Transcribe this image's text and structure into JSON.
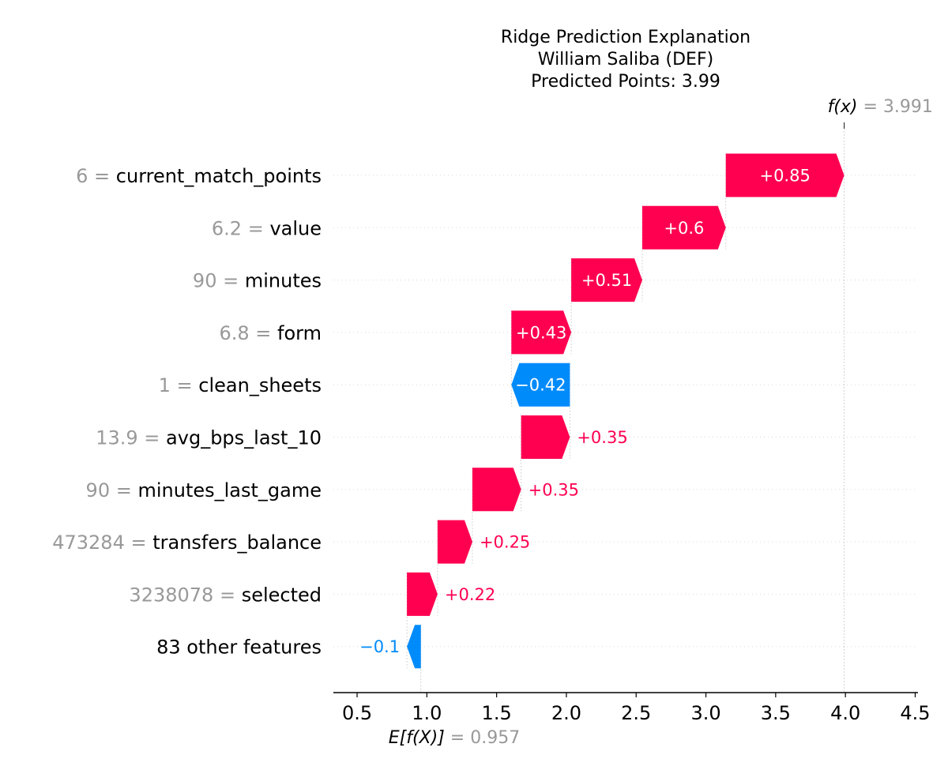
{
  "chart_data": {
    "type": "waterfall",
    "title_lines": [
      "Ridge Prediction Explanation",
      "William Saliba (DEF)",
      "Predicted Points: 3.99"
    ],
    "base_value": 0.957,
    "base_label": "E[f(X)]",
    "base_display": "0.957",
    "output_value": 3.991,
    "output_label": "f(x)",
    "output_display": "3.991",
    "xlim": [
      0.33,
      4.52
    ],
    "x_ticks": [
      0.5,
      1.0,
      1.5,
      2.0,
      2.5,
      3.0,
      3.5,
      4.0,
      4.5
    ],
    "x_tick_labels": [
      "0.5",
      "1.0",
      "1.5",
      "2.0",
      "2.5",
      "3.0",
      "3.5",
      "4.0",
      "4.5"
    ],
    "colors": {
      "positive": "#ff0051",
      "negative": "#008bfb",
      "feature_value": "#999999"
    },
    "features": [
      {
        "value": "6",
        "name": "current_match_points",
        "contribution": 0.85,
        "label": "+0.85"
      },
      {
        "value": "6.2",
        "name": "value",
        "contribution": 0.6,
        "label": "+0.6"
      },
      {
        "value": "90",
        "name": "minutes",
        "contribution": 0.51,
        "label": "+0.51"
      },
      {
        "value": "6.8",
        "name": "form",
        "contribution": 0.43,
        "label": "+0.43"
      },
      {
        "value": "1",
        "name": "clean_sheets",
        "contribution": -0.42,
        "label": "−0.42"
      },
      {
        "value": "13.9",
        "name": "avg_bps_last_10",
        "contribution": 0.35,
        "label": "+0.35"
      },
      {
        "value": "90",
        "name": "minutes_last_game",
        "contribution": 0.35,
        "label": "+0.35"
      },
      {
        "value": "473284",
        "name": "transfers_balance",
        "contribution": 0.25,
        "label": "+0.25"
      },
      {
        "value": "3238078",
        "name": "selected",
        "contribution": 0.22,
        "label": "+0.22"
      },
      {
        "value": "",
        "name": "83 other features",
        "contribution": -0.1,
        "label": "−0.1"
      }
    ]
  }
}
